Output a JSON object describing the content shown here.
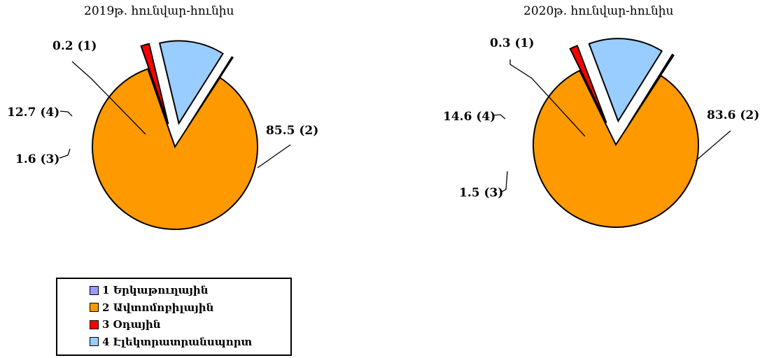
{
  "chart_data": [
    {
      "type": "pie",
      "title": "2019թ. հունվար-հունիս",
      "slices": [
        {
          "id": 1,
          "value": 0.2,
          "label": "0.2 (1)"
        },
        {
          "id": 2,
          "value": 85.5,
          "label": "85.5 (2)"
        },
        {
          "id": 3,
          "value": 1.6,
          "label": "1.6 (3)"
        },
        {
          "id": 4,
          "value": 12.7,
          "label": "12.7 (4)"
        }
      ]
    },
    {
      "type": "pie",
      "title": "2020թ. հունվար-հունիս",
      "slices": [
        {
          "id": 1,
          "value": 0.3,
          "label": "0.3 (1)"
        },
        {
          "id": 2,
          "value": 83.6,
          "label": "83.6 (2)"
        },
        {
          "id": 3,
          "value": 1.5,
          "label": "1.5 (3)"
        },
        {
          "id": 4,
          "value": 14.6,
          "label": "14.6 (4)"
        }
      ]
    }
  ],
  "legend": [
    {
      "label": "1 Երկաթուղային",
      "color": "#9999ff"
    },
    {
      "label": "2 Ավտոմոբիլային",
      "color": "#ff9900"
    },
    {
      "label": "3 Օդային",
      "color": "#ff0000"
    },
    {
      "label": "4 Էլեկտրատրանսպորտ",
      "color": "#99ccff"
    }
  ]
}
